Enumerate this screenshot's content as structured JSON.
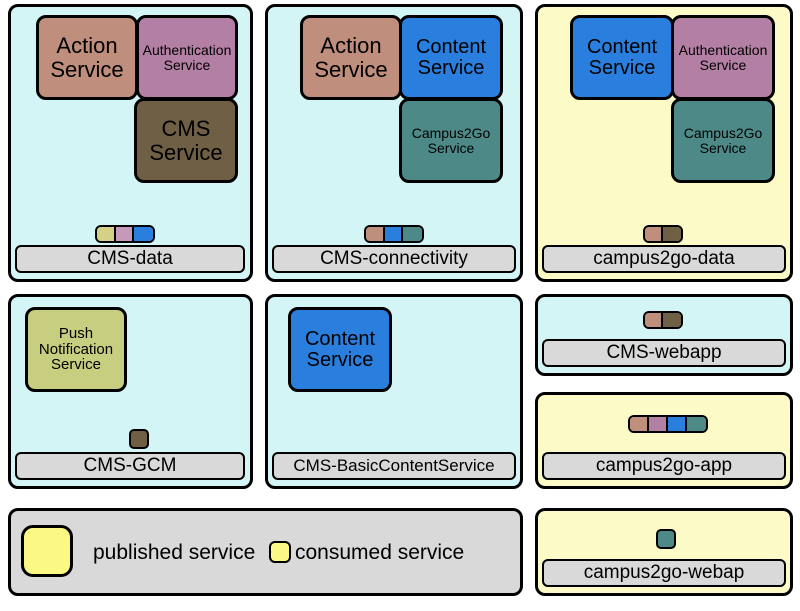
{
  "colors": {
    "panel_cyan": "#d4f5f5",
    "panel_yellow": "#fcfac6",
    "label_gray": "#d9d9d9",
    "action": "#bf8e7d",
    "auth": "#b47fa4",
    "cms": "#6f6045",
    "content": "#2a7fde",
    "campus2go": "#4d8a87",
    "push": "#c7ce80",
    "pill_yellow": "#d4d087",
    "pill_pink": "#c499ba",
    "pill_blue": "#2a7fde",
    "pill_tan": "#bf8e7d",
    "pill_teal": "#4d8a87",
    "sq_brown": "#6f6045",
    "legend_yellow": "#fcf884"
  },
  "panels": {
    "cms_data": {
      "title": "CMS-data"
    },
    "cms_conn": {
      "title": "CMS-connectivity"
    },
    "c2g_data": {
      "title": "campus2go-data"
    },
    "cms_gcm": {
      "title": "CMS-GCM"
    },
    "cms_basic": {
      "title": "CMS-BasicContentService"
    },
    "cms_webapp": {
      "title": "CMS-webapp"
    },
    "c2g_app": {
      "title": "campus2go-app"
    },
    "c2g_webapp": {
      "title": "campus2go-webap"
    }
  },
  "services": {
    "action": "Action\nService",
    "auth": "Authentication\nService",
    "cms": "CMS\nService",
    "content": "Content\nService",
    "campus2go": "Campus2Go\nService",
    "push": "Push\nNotification\nService"
  },
  "legend": {
    "published": "published service",
    "consumed": "consumed service"
  }
}
